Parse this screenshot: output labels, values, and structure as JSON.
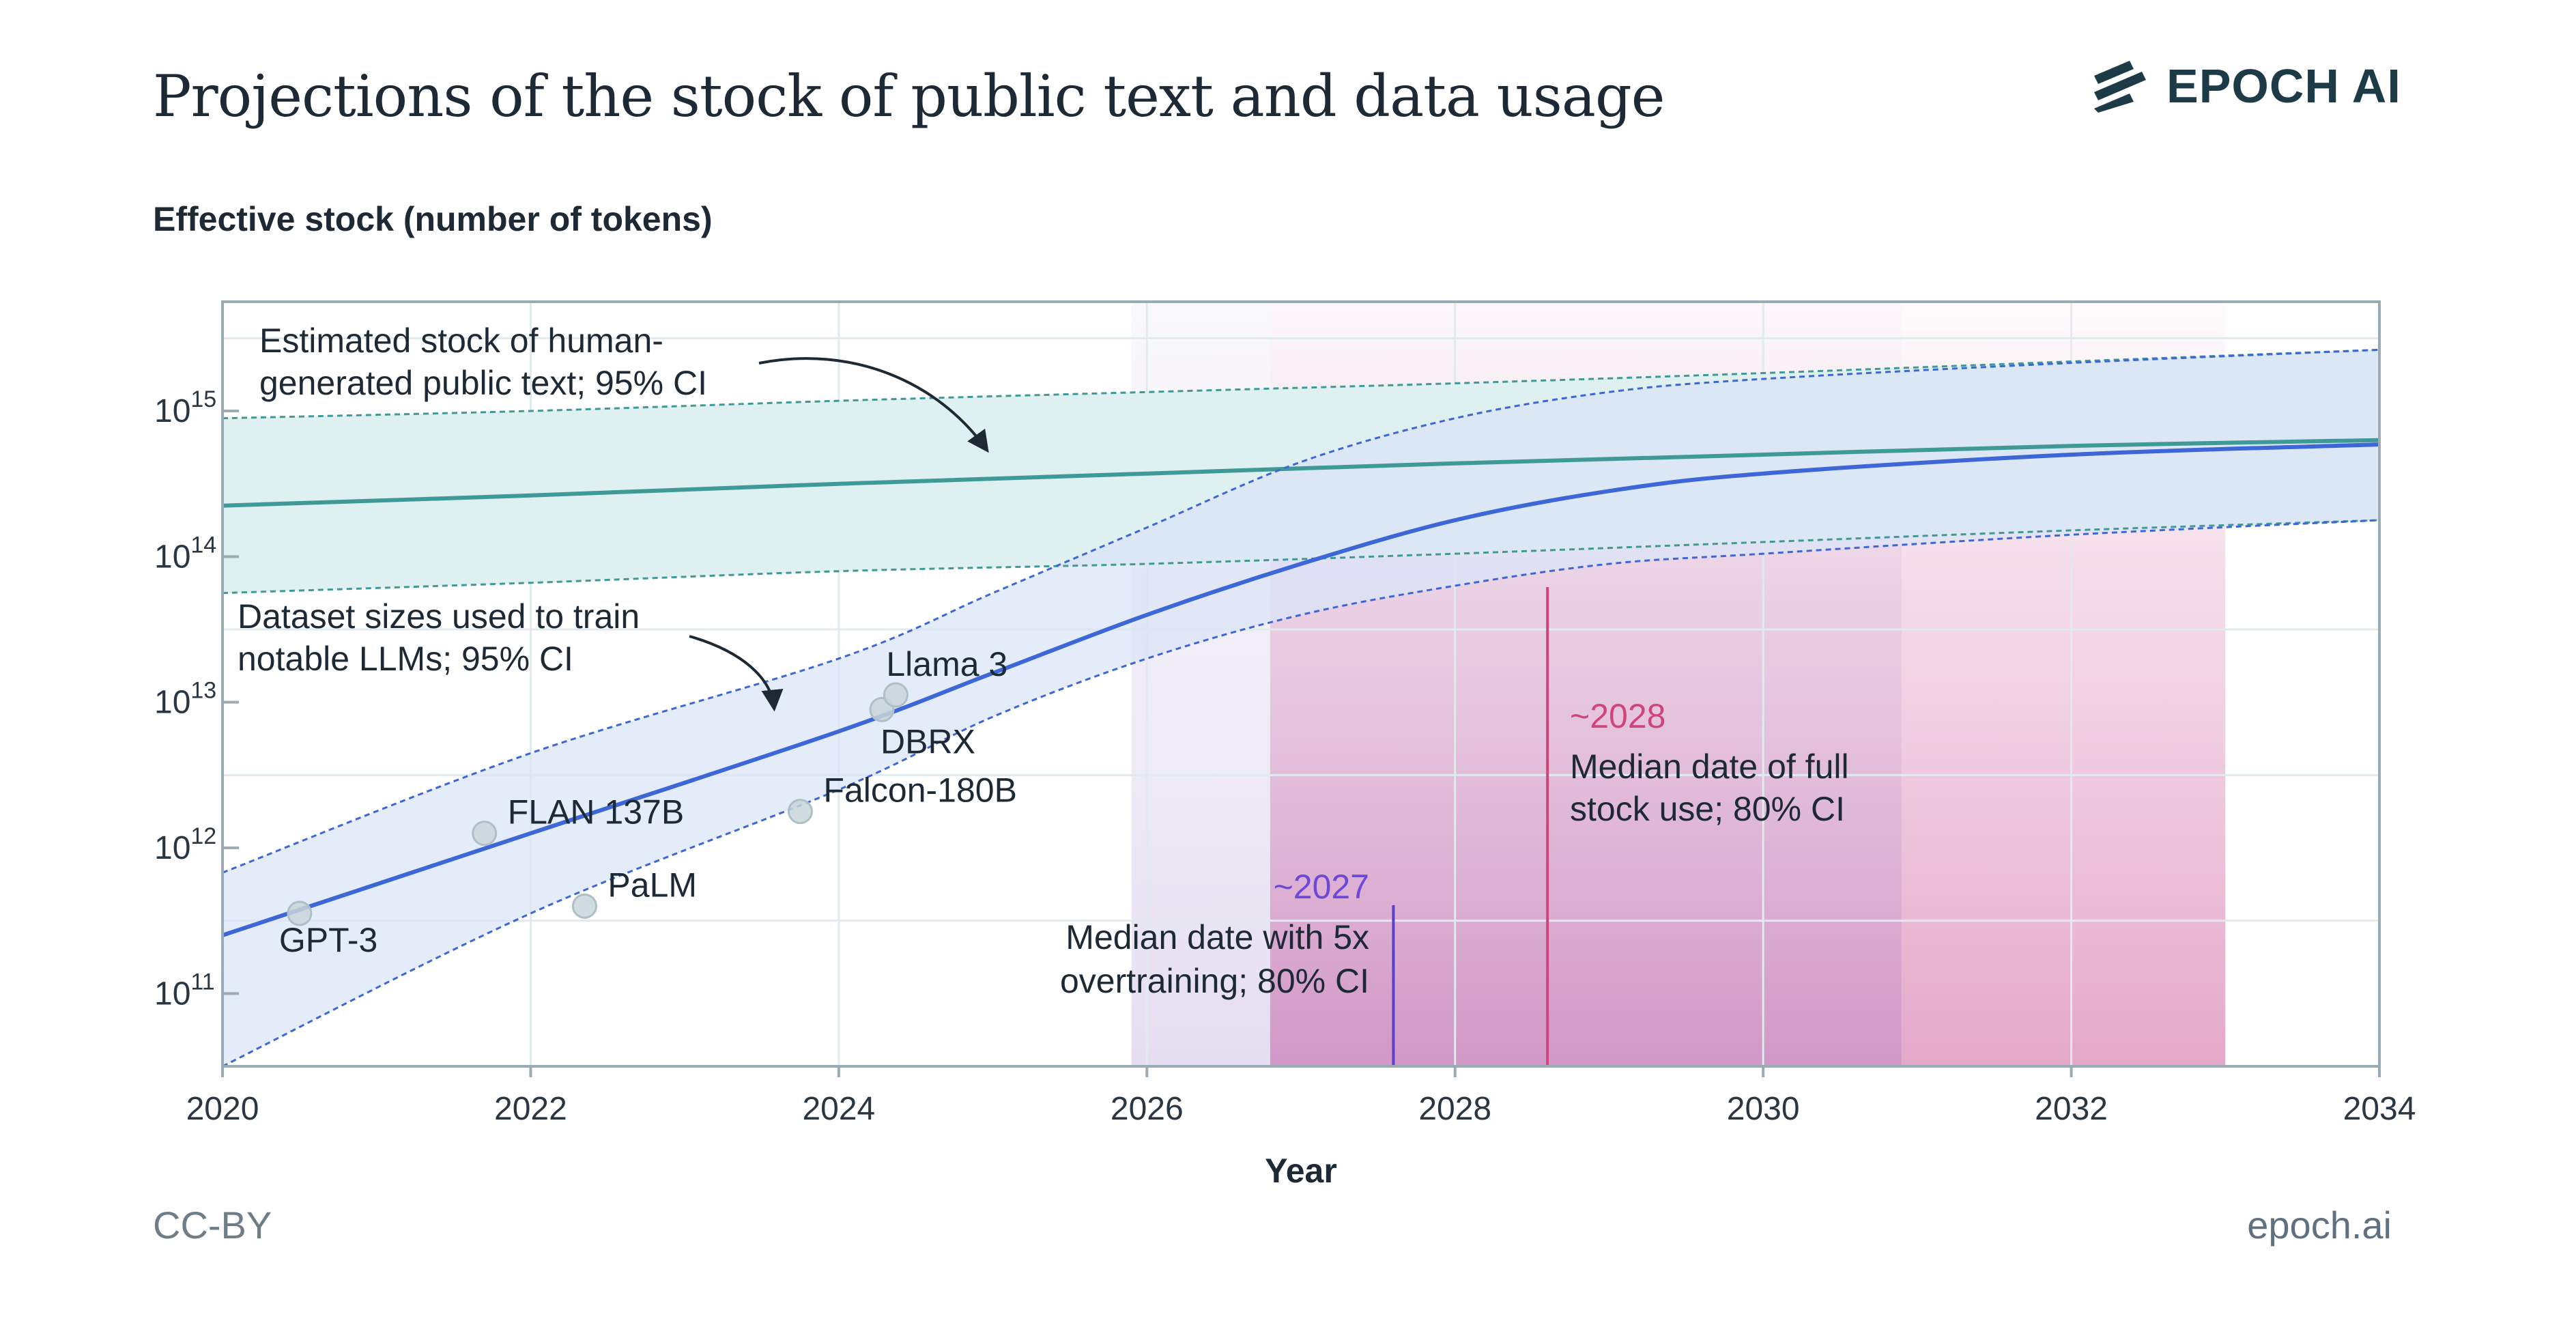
{
  "header": {
    "title": "Projections of the stock of public text and data usage",
    "logo_text": "EPOCH AI"
  },
  "footer": {
    "license": "CC-BY",
    "site": "epoch.ai"
  },
  "colors": {
    "stock": "#3f9a97",
    "stock_band": "#dcefef",
    "dataset": "#3d67d6",
    "dataset_band": "#dbe4f7",
    "overtrain_marker": "#5b3fc9",
    "full_use_marker": "#d0447c",
    "frame": "#9aabb3",
    "grid": "#e1eaec",
    "text": "#1d2a36"
  },
  "chart_data": {
    "type": "line",
    "title": "Projections of the stock of public text and data usage",
    "xlabel": "Year",
    "ylabel": "Effective stock (number of tokens)",
    "yscale": "log",
    "xlim": [
      2020,
      2034
    ],
    "ylim_log10": [
      10.5,
      15.75
    ],
    "x_ticks": [
      {
        "value": 2020,
        "label": "2020"
      },
      {
        "value": 2022,
        "label": "2022"
      },
      {
        "value": 2024,
        "label": "2024"
      },
      {
        "value": 2026,
        "label": "2026"
      },
      {
        "value": 2028,
        "label": "2028"
      },
      {
        "value": 2030,
        "label": "2030"
      },
      {
        "value": 2032,
        "label": "2032"
      },
      {
        "value": 2034,
        "label": "2034"
      }
    ],
    "y_ticks": [
      {
        "log10": 11,
        "base": "10",
        "exp": "11"
      },
      {
        "log10": 12,
        "base": "10",
        "exp": "12"
      },
      {
        "log10": 13,
        "base": "10",
        "exp": "13"
      },
      {
        "log10": 14,
        "base": "10",
        "exp": "14"
      },
      {
        "log10": 15,
        "base": "10",
        "exp": "15"
      }
    ],
    "series": [
      {
        "name": "Estimated stock of human-generated public text",
        "x": [
          2020,
          2022,
          2024,
          2026,
          2028,
          2030,
          2032,
          2034
        ],
        "log10_median": [
          14.35,
          14.42,
          14.5,
          14.57,
          14.64,
          14.7,
          14.76,
          14.8
        ],
        "log10_low": [
          13.75,
          13.82,
          13.9,
          13.95,
          14.02,
          14.1,
          14.18,
          14.25
        ],
        "log10_high": [
          14.95,
          15.0,
          15.07,
          15.13,
          15.19,
          15.26,
          15.34,
          15.42
        ]
      },
      {
        "name": "Dataset sizes used to train notable LLMs",
        "x": [
          2020,
          2022,
          2024,
          2025,
          2026,
          2027,
          2028,
          2029,
          2030,
          2032,
          2034
        ],
        "log10_median": [
          11.4,
          12.1,
          12.8,
          13.2,
          13.6,
          13.95,
          14.25,
          14.45,
          14.57,
          14.7,
          14.77
        ],
        "log10_low": [
          10.5,
          11.55,
          12.4,
          12.9,
          13.3,
          13.6,
          13.8,
          13.95,
          14.02,
          14.15,
          14.25
        ],
        "log10_high": [
          11.83,
          12.65,
          13.3,
          13.75,
          14.2,
          14.65,
          14.95,
          15.13,
          15.22,
          15.33,
          15.42
        ]
      }
    ],
    "models": [
      {
        "name": "GPT-3",
        "year": 2020.5,
        "log10_tokens": 11.55
      },
      {
        "name": "FLAN 137B",
        "year": 2021.7,
        "log10_tokens": 12.1
      },
      {
        "name": "PaLM",
        "year": 2022.35,
        "log10_tokens": 11.6
      },
      {
        "name": "Falcon-180B",
        "year": 2023.75,
        "log10_tokens": 12.25
      },
      {
        "name": "DBRX",
        "year": 2024.28,
        "log10_tokens": 12.95
      },
      {
        "name": "Llama 3",
        "year": 2024.37,
        "log10_tokens": 13.05
      }
    ],
    "intervals": [
      {
        "name": "overtraining_80ci",
        "x_start": 2025.9,
        "x_end": 2030.9
      },
      {
        "name": "full_use_80ci",
        "x_start": 2026.8,
        "x_end": 2033.0
      }
    ],
    "markers": [
      {
        "name": "overtraining_median",
        "x": 2027.6
      },
      {
        "name": "full_use_median",
        "x": 2028.6
      }
    ],
    "annotations": {
      "stock_line1": "Estimated stock of human-",
      "stock_line2": "generated public text; 95% CI",
      "dataset_line1": "Dataset sizes used to train",
      "dataset_line2": "notable LLMs; 95% CI",
      "overtrain_year": "~2027",
      "overtrain_line1": "Median date with 5x",
      "overtrain_line2": "overtraining; 80% CI",
      "fulluse_year": "~2028",
      "fulluse_line1": "Median date of full",
      "fulluse_line2": "stock use; 80% CI"
    }
  }
}
